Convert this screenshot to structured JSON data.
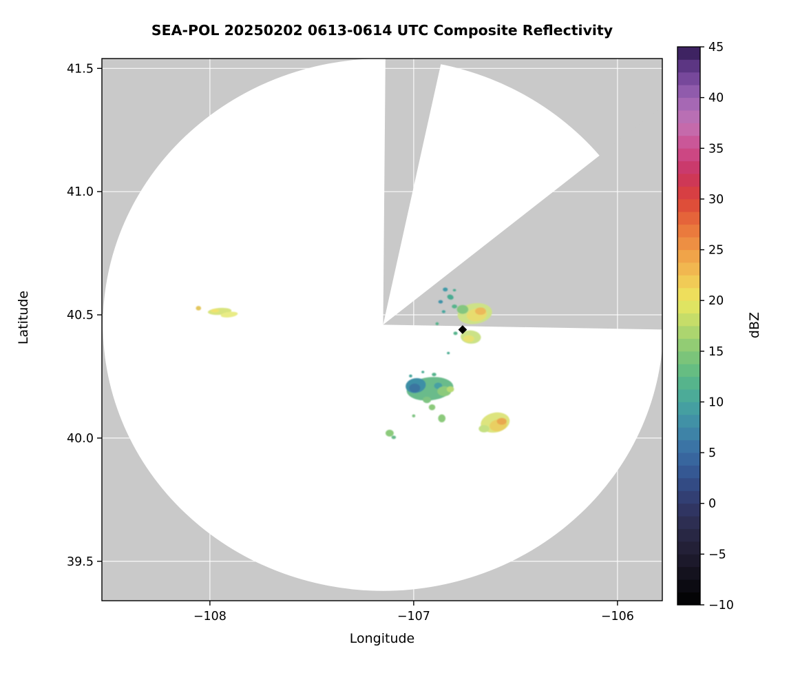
{
  "figure": {
    "title": "SEA-POL 20250202 0613-0614 UTC Composite Reflectivity",
    "xlabel": "Longitude",
    "ylabel": "Latitude",
    "colorbar_label": "dBZ"
  },
  "chart_data": {
    "type": "heatmap",
    "subtype": "radar-composite-reflectivity-ppi",
    "title": "SEA-POL 20250202 0613-0614 UTC Composite Reflectivity",
    "xlabel": "Longitude",
    "ylabel": "Latitude",
    "xlim": [
      -108.53,
      -105.78
    ],
    "ylim": [
      39.34,
      41.54
    ],
    "x_ticks": [
      -108,
      -107,
      -106
    ],
    "x_tick_labels": [
      "−108",
      "−107",
      "−106"
    ],
    "y_ticks": [
      39.5,
      40.0,
      40.5,
      41.0,
      41.5
    ],
    "y_tick_labels": [
      "39.5",
      "40.0",
      "40.5",
      "41.0",
      "41.5"
    ],
    "grid": true,
    "grid_color": "#ffffff",
    "background_color": "#c9c9c9",
    "coverage_color": "#ffffff",
    "frame_color": "#000000",
    "radar": {
      "center_lon": -107.15,
      "center_lat": 40.46,
      "radius_deg_lon": 1.375,
      "radius_deg_lat": 1.08
    },
    "blocked_sectors": [
      {
        "az_start": 0.5,
        "az_end": 13.5
      },
      {
        "az_start": 52,
        "az_end": 91
      }
    ],
    "site_marker": {
      "lon": -106.76,
      "lat": 40.44,
      "color": "#000000",
      "shape": "diamond"
    },
    "colorbar": {
      "label": "dBZ",
      "min": -10,
      "max": 45,
      "segments": 44,
      "ticks": [
        -10,
        -5,
        0,
        5,
        10,
        15,
        20,
        25,
        30,
        35,
        40,
        45
      ],
      "tick_labels": [
        "−10",
        "−5",
        "0",
        "5",
        "10",
        "15",
        "20",
        "25",
        "30",
        "35",
        "40",
        "45"
      ],
      "stops": [
        {
          "v": -10,
          "c": "#000000"
        },
        {
          "v": -7.5,
          "c": "#100e18"
        },
        {
          "v": -5,
          "c": "#201c31"
        },
        {
          "v": -2.5,
          "c": "#2b2a4a"
        },
        {
          "v": 0,
          "c": "#31396a"
        },
        {
          "v": 2.5,
          "c": "#33518d"
        },
        {
          "v": 5,
          "c": "#3a6da4"
        },
        {
          "v": 7.5,
          "c": "#3f8aa8"
        },
        {
          "v": 10,
          "c": "#47a69e"
        },
        {
          "v": 12.5,
          "c": "#5bb986"
        },
        {
          "v": 15,
          "c": "#85c876"
        },
        {
          "v": 17.5,
          "c": "#b9d96c"
        },
        {
          "v": 20,
          "c": "#ece85f"
        },
        {
          "v": 22.5,
          "c": "#f2c153"
        },
        {
          "v": 25,
          "c": "#ef9a46"
        },
        {
          "v": 27.5,
          "c": "#e86f3a"
        },
        {
          "v": 30,
          "c": "#db4339"
        },
        {
          "v": 32.5,
          "c": "#c93460"
        },
        {
          "v": 35,
          "c": "#cd4d8e"
        },
        {
          "v": 37.5,
          "c": "#c273b4"
        },
        {
          "v": 40,
          "c": "#9c64b4"
        },
        {
          "v": 42.5,
          "c": "#6b3f93"
        },
        {
          "v": 45,
          "c": "#2f1a52"
        }
      ]
    },
    "echoes": [
      {
        "lon": -108.056,
        "lat": 40.527,
        "rx": 0.013,
        "ry": 0.009,
        "rot": 0,
        "color": "#e3c75e"
      },
      {
        "lon": -107.952,
        "lat": 40.514,
        "rx": 0.058,
        "ry": 0.014,
        "rot": -4,
        "color": "#d8e47e"
      },
      {
        "lon": -107.905,
        "lat": 40.501,
        "rx": 0.042,
        "ry": 0.011,
        "rot": -7,
        "color": "#e9ec86"
      },
      {
        "lon": -107.975,
        "lat": 40.517,
        "rx": 0.02,
        "ry": 0.007,
        "rot": 0,
        "color": "#f0e26e"
      },
      {
        "lon": -106.845,
        "lat": 40.603,
        "rx": 0.012,
        "ry": 0.008,
        "rot": 0,
        "color": "#3f9aa8"
      },
      {
        "lon": -106.82,
        "lat": 40.572,
        "rx": 0.016,
        "ry": 0.01,
        "rot": 20,
        "color": "#49ab92"
      },
      {
        "lon": -106.868,
        "lat": 40.553,
        "rx": 0.011,
        "ry": 0.007,
        "rot": 0,
        "color": "#3f93a8"
      },
      {
        "lon": -106.8,
        "lat": 40.534,
        "rx": 0.013,
        "ry": 0.008,
        "rot": 0,
        "color": "#57b48c"
      },
      {
        "lon": -106.853,
        "lat": 40.513,
        "rx": 0.009,
        "ry": 0.006,
        "rot": 0,
        "color": "#47a69e"
      },
      {
        "lon": -106.885,
        "lat": 40.464,
        "rx": 0.008,
        "ry": 0.006,
        "rot": 0,
        "color": "#57b48c"
      },
      {
        "lon": -106.8,
        "lat": 40.6,
        "rx": 0.008,
        "ry": 0.005,
        "rot": 0,
        "color": "#49ab92"
      },
      {
        "lon": -106.7,
        "lat": 40.505,
        "rx": 0.085,
        "ry": 0.042,
        "rot": -8,
        "color": "#cde287"
      },
      {
        "lon": -106.69,
        "lat": 40.5,
        "rx": 0.05,
        "ry": 0.026,
        "rot": -8,
        "color": "#e8dc6e"
      },
      {
        "lon": -106.672,
        "lat": 40.515,
        "rx": 0.027,
        "ry": 0.015,
        "rot": 0,
        "color": "#ecb95a"
      },
      {
        "lon": -106.76,
        "lat": 40.522,
        "rx": 0.028,
        "ry": 0.018,
        "rot": 0,
        "color": "#84c67f"
      },
      {
        "lon": -106.72,
        "lat": 40.41,
        "rx": 0.05,
        "ry": 0.027,
        "rot": 4,
        "color": "#cbe287"
      },
      {
        "lon": -106.73,
        "lat": 40.403,
        "rx": 0.027,
        "ry": 0.014,
        "rot": 0,
        "color": "#e6e171"
      },
      {
        "lon": -106.795,
        "lat": 40.425,
        "rx": 0.01,
        "ry": 0.007,
        "rot": 0,
        "color": "#57b48c"
      },
      {
        "lon": -106.92,
        "lat": 40.2,
        "rx": 0.115,
        "ry": 0.047,
        "rot": -6,
        "color": "#6abb8b"
      },
      {
        "lon": -106.99,
        "lat": 40.213,
        "rx": 0.05,
        "ry": 0.03,
        "rot": -10,
        "color": "#3e8fa6"
      },
      {
        "lon": -106.995,
        "lat": 40.203,
        "rx": 0.027,
        "ry": 0.018,
        "rot": 0,
        "color": "#3a74a0"
      },
      {
        "lon": -106.88,
        "lat": 40.212,
        "rx": 0.02,
        "ry": 0.013,
        "rot": 0,
        "color": "#47a0a3"
      },
      {
        "lon": -106.85,
        "lat": 40.19,
        "rx": 0.034,
        "ry": 0.02,
        "rot": 0,
        "color": "#8cca7c"
      },
      {
        "lon": -106.82,
        "lat": 40.198,
        "rx": 0.018,
        "ry": 0.012,
        "rot": 0,
        "color": "#b8da74"
      },
      {
        "lon": -106.9,
        "lat": 40.258,
        "rx": 0.011,
        "ry": 0.007,
        "rot": 0,
        "color": "#57b48c"
      },
      {
        "lon": -107.015,
        "lat": 40.252,
        "rx": 0.008,
        "ry": 0.006,
        "rot": 0,
        "color": "#47a69e"
      },
      {
        "lon": -106.955,
        "lat": 40.268,
        "rx": 0.007,
        "ry": 0.005,
        "rot": 0,
        "color": "#49ab92"
      },
      {
        "lon": -106.935,
        "lat": 40.155,
        "rx": 0.02,
        "ry": 0.013,
        "rot": 0,
        "color": "#7fc482"
      },
      {
        "lon": -106.91,
        "lat": 40.125,
        "rx": 0.016,
        "ry": 0.012,
        "rot": 0,
        "color": "#8cca7c"
      },
      {
        "lon": -106.862,
        "lat": 40.08,
        "rx": 0.018,
        "ry": 0.016,
        "rot": 0,
        "color": "#8cca7c"
      },
      {
        "lon": -106.6,
        "lat": 40.063,
        "rx": 0.072,
        "ry": 0.04,
        "rot": -12,
        "color": "#dde47e"
      },
      {
        "lon": -106.585,
        "lat": 40.052,
        "rx": 0.043,
        "ry": 0.024,
        "rot": -10,
        "color": "#e9cf62"
      },
      {
        "lon": -106.568,
        "lat": 40.068,
        "rx": 0.024,
        "ry": 0.014,
        "rot": 0,
        "color": "#e9a84f"
      },
      {
        "lon": -106.655,
        "lat": 40.038,
        "rx": 0.026,
        "ry": 0.015,
        "rot": 0,
        "color": "#c5e083"
      },
      {
        "lon": -107.118,
        "lat": 40.02,
        "rx": 0.02,
        "ry": 0.014,
        "rot": 0,
        "color": "#8cca7c"
      },
      {
        "lon": -107.098,
        "lat": 40.003,
        "rx": 0.011,
        "ry": 0.007,
        "rot": 0,
        "color": "#6abb8b"
      },
      {
        "lon": -107.0,
        "lat": 40.09,
        "rx": 0.008,
        "ry": 0.006,
        "rot": 0,
        "color": "#7fc482"
      },
      {
        "lon": -106.83,
        "lat": 40.345,
        "rx": 0.007,
        "ry": 0.005,
        "rot": 0,
        "color": "#49ab92"
      }
    ]
  }
}
